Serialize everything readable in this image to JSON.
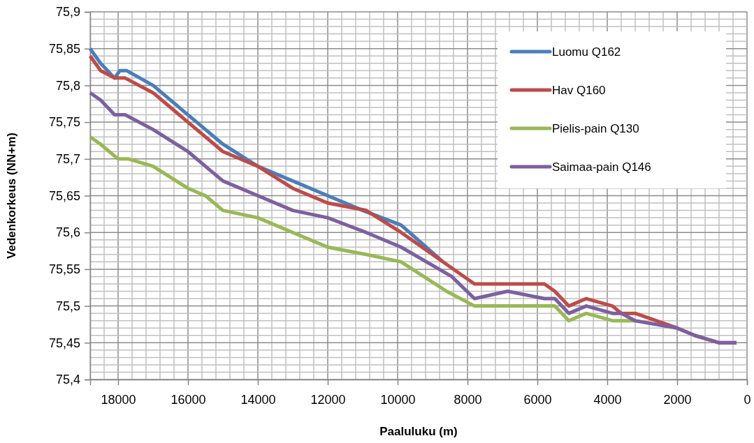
{
  "chart_data": {
    "type": "line",
    "xlabel": "Paaluluku (m)",
    "ylabel": "Vedenkorkeus (NN+m)",
    "xlim": [
      18800,
      0
    ],
    "ylim": [
      75.4,
      75.9
    ],
    "xticks": [
      {
        "value": 18800,
        "label": null
      },
      {
        "value": 18400,
        "label": null
      },
      18000,
      {
        "value": 17600,
        "label": null
      },
      {
        "value": 17200,
        "label": null
      },
      {
        "value": 16800,
        "label": null
      },
      {
        "value": 16400,
        "label": null
      },
      16000,
      {
        "value": 15600,
        "label": null
      },
      {
        "value": 15200,
        "label": null
      },
      {
        "value": 14800,
        "label": null
      },
      {
        "value": 14400,
        "label": null
      },
      14000,
      {
        "value": 13600,
        "label": null
      },
      {
        "value": 13200,
        "label": null
      },
      {
        "value": 12800,
        "label": null
      },
      {
        "value": 12400,
        "label": null
      },
      12000,
      {
        "value": 11600,
        "label": null
      },
      {
        "value": 11200,
        "label": null
      },
      {
        "value": 10800,
        "label": null
      },
      {
        "value": 10400,
        "label": null
      },
      10000,
      {
        "value": 9600,
        "label": null
      },
      {
        "value": 9200,
        "label": null
      },
      {
        "value": 8800,
        "label": null
      },
      {
        "value": 8400,
        "label": null
      },
      8000,
      {
        "value": 7600,
        "label": null
      },
      {
        "value": 7200,
        "label": null
      },
      {
        "value": 6800,
        "label": null
      },
      {
        "value": 6400,
        "label": null
      },
      6000,
      {
        "value": 5600,
        "label": null
      },
      {
        "value": 5200,
        "label": null
      },
      {
        "value": 4800,
        "label": null
      },
      {
        "value": 4400,
        "label": null
      },
      4000,
      {
        "value": 3600,
        "label": null
      },
      {
        "value": 3200,
        "label": null
      },
      {
        "value": 2800,
        "label": null
      },
      {
        "value": 2400,
        "label": null
      },
      2000,
      {
        "value": 1600,
        "label": null
      },
      {
        "value": 1200,
        "label": null
      },
      {
        "value": 800,
        "label": null
      },
      {
        "value": 400,
        "label": null
      },
      0
    ],
    "yticks": [
      {
        "value": 75.4,
        "label": "75,4"
      },
      {
        "value": 75.41,
        "label": null
      },
      {
        "value": 75.42,
        "label": null
      },
      {
        "value": 75.43,
        "label": null
      },
      {
        "value": 75.44,
        "label": null
      },
      {
        "value": 75.45,
        "label": "75,45"
      },
      {
        "value": 75.46,
        "label": null
      },
      {
        "value": 75.47,
        "label": null
      },
      {
        "value": 75.48,
        "label": null
      },
      {
        "value": 75.49,
        "label": null
      },
      {
        "value": 75.5,
        "label": "75,5"
      },
      {
        "value": 75.51,
        "label": null
      },
      {
        "value": 75.52,
        "label": null
      },
      {
        "value": 75.53,
        "label": null
      },
      {
        "value": 75.54,
        "label": null
      },
      {
        "value": 75.55,
        "label": "75,55"
      },
      {
        "value": 75.56,
        "label": null
      },
      {
        "value": 75.57,
        "label": null
      },
      {
        "value": 75.58,
        "label": null
      },
      {
        "value": 75.59,
        "label": null
      },
      {
        "value": 75.6,
        "label": "75,6"
      },
      {
        "value": 75.61,
        "label": null
      },
      {
        "value": 75.62,
        "label": null
      },
      {
        "value": 75.63,
        "label": null
      },
      {
        "value": 75.64,
        "label": null
      },
      {
        "value": 75.65,
        "label": "75,65"
      },
      {
        "value": 75.66,
        "label": null
      },
      {
        "value": 75.67,
        "label": null
      },
      {
        "value": 75.68,
        "label": null
      },
      {
        "value": 75.69,
        "label": null
      },
      {
        "value": 75.7,
        "label": "75,7"
      },
      {
        "value": 75.71,
        "label": null
      },
      {
        "value": 75.72,
        "label": null
      },
      {
        "value": 75.73,
        "label": null
      },
      {
        "value": 75.74,
        "label": null
      },
      {
        "value": 75.75,
        "label": "75,75"
      },
      {
        "value": 75.76,
        "label": null
      },
      {
        "value": 75.77,
        "label": null
      },
      {
        "value": 75.78,
        "label": null
      },
      {
        "value": 75.79,
        "label": null
      },
      {
        "value": 75.8,
        "label": "75,8"
      },
      {
        "value": 75.81,
        "label": null
      },
      {
        "value": 75.82,
        "label": null
      },
      {
        "value": 75.83,
        "label": null
      },
      {
        "value": 75.84,
        "label": null
      },
      {
        "value": 75.85,
        "label": "75,85"
      },
      {
        "value": 75.86,
        "label": null
      },
      {
        "value": 75.87,
        "label": null
      },
      {
        "value": 75.88,
        "label": null
      },
      {
        "value": 75.89,
        "label": null
      },
      {
        "value": 75.9,
        "label": "75,9"
      }
    ],
    "grid": true,
    "legend": "top right",
    "marker": "none",
    "line_style": "solid",
    "series": [
      {
        "name": "Luomu Q162",
        "color": "#4a7ebb",
        "x": [
          18800,
          18500,
          18100,
          17950,
          17750,
          17000,
          16000,
          15500,
          15000,
          14000,
          13000,
          12000,
          11000,
          9900,
          8700
        ],
        "values": [
          75.85,
          75.83,
          75.81,
          75.82,
          75.82,
          75.8,
          75.76,
          75.74,
          75.72,
          75.69,
          75.67,
          75.65,
          75.63,
          75.61,
          75.56
        ]
      },
      {
        "name": "Hav Q160",
        "color": "#be4b48",
        "x": [
          18800,
          18500,
          18100,
          17800,
          17000,
          16000,
          15000,
          14000,
          13000,
          12000,
          10900,
          9900,
          7800,
          5800,
          5500,
          5100,
          4600,
          3850,
          3600,
          3200,
          2000,
          1500,
          800,
          300
        ],
        "values": [
          75.84,
          75.82,
          75.81,
          75.81,
          75.79,
          75.75,
          75.71,
          75.69,
          75.66,
          75.64,
          75.63,
          75.6,
          75.53,
          75.53,
          75.52,
          75.5,
          75.51,
          75.5,
          75.49,
          75.49,
          75.47,
          75.46,
          75.45,
          75.45
        ]
      },
      {
        "name": "Pielis-pain Q130",
        "color": "#98b954",
        "x": [
          18800,
          18500,
          18000,
          17700,
          17000,
          16000,
          15500,
          15000,
          14000,
          13000,
          12000,
          10900,
          9900,
          8600,
          7800,
          5500,
          5100,
          4600,
          3850,
          3200
        ],
        "values": [
          75.73,
          75.72,
          75.7,
          75.7,
          75.69,
          75.66,
          75.65,
          75.63,
          75.62,
          75.6,
          75.58,
          75.57,
          75.56,
          75.52,
          75.5,
          75.5,
          75.48,
          75.49,
          75.48,
          75.48
        ]
      },
      {
        "name": "Saimaa-pain Q146",
        "color": "#7d60a0",
        "x": [
          18800,
          18500,
          18100,
          17800,
          17000,
          16000,
          15500,
          15000,
          14000,
          13000,
          12000,
          10900,
          9900,
          8450,
          7800,
          6850,
          5800,
          5500,
          5100,
          4600,
          3850,
          3600,
          3200,
          2000,
          1500,
          800,
          300
        ],
        "values": [
          75.79,
          75.78,
          75.76,
          75.76,
          75.74,
          75.71,
          75.69,
          75.67,
          75.65,
          75.63,
          75.62,
          75.6,
          75.58,
          75.54,
          75.51,
          75.52,
          75.51,
          75.51,
          75.49,
          75.5,
          75.49,
          75.49,
          75.48,
          75.47,
          75.46,
          75.45,
          75.45
        ]
      }
    ]
  }
}
